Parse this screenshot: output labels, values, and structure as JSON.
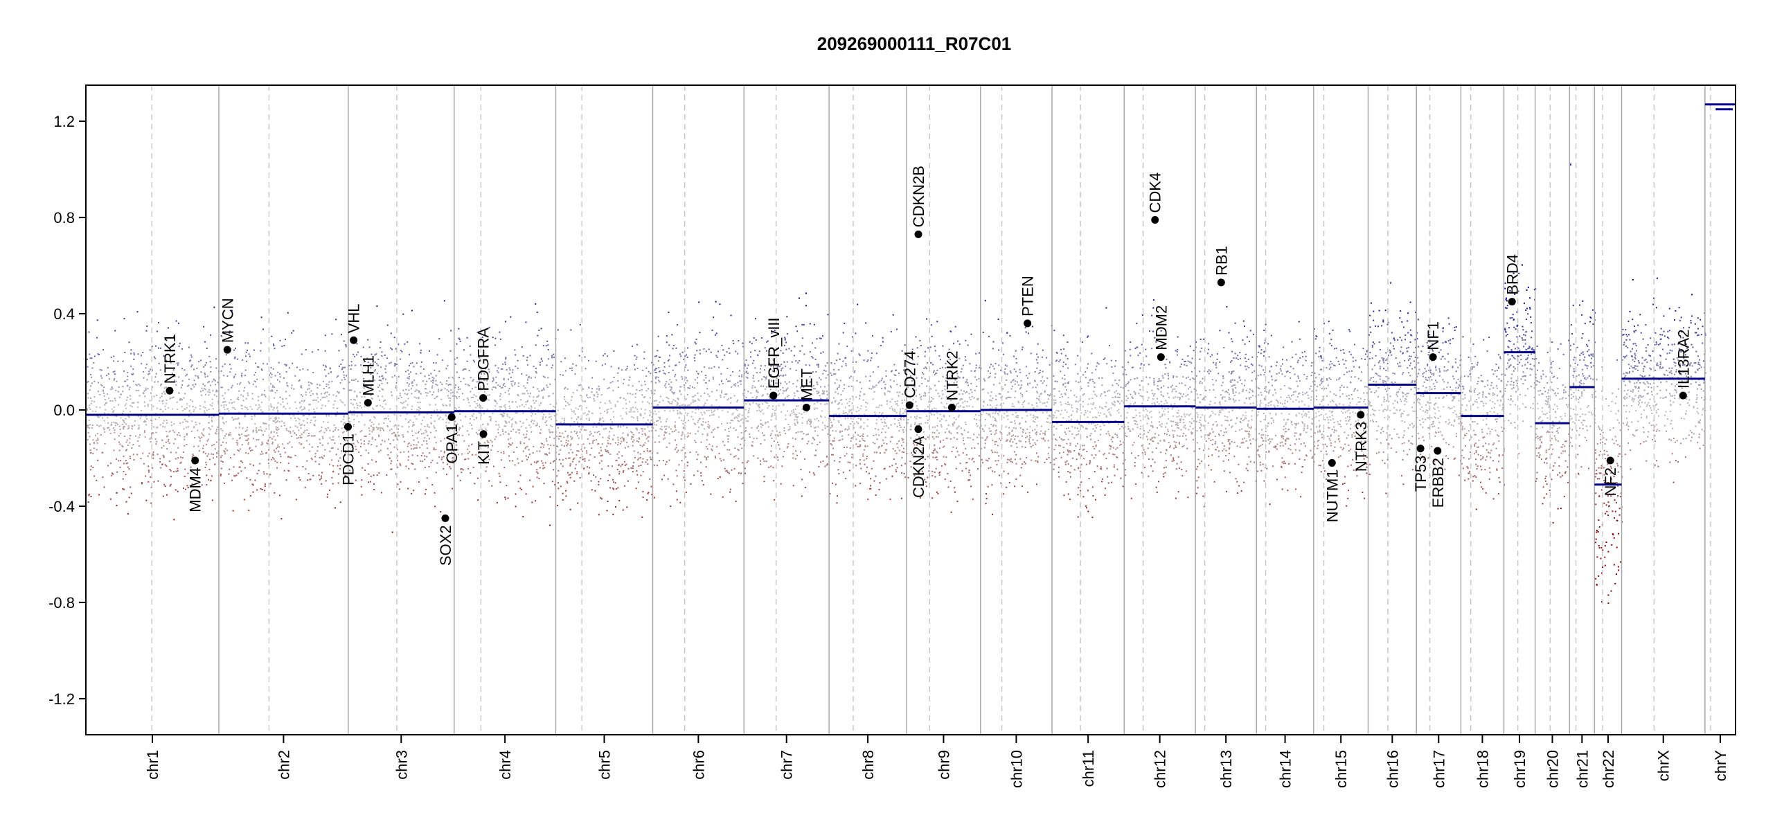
{
  "chart_data": {
    "type": "scatter",
    "title": "209269000111_R07C01",
    "xlabel": "",
    "ylabel": "",
    "ylim": [
      -1.35,
      1.35
    ],
    "y_ticks": [
      1.2,
      0.8,
      0.4,
      0.0,
      -0.4,
      -0.8,
      -1.2
    ],
    "y_tick_labels": [
      "1.2",
      "0.8",
      "0.4",
      "0.0",
      "-0.4",
      "-0.8",
      "-1.2"
    ],
    "grid": false,
    "x_axis_unit": "Mb (cumulative genome position)",
    "colors": {
      "gain": "#00008B",
      "loss": "#8B0000",
      "segment": "#00008B",
      "neutral": "#BEBEBE",
      "boundary": "#A9A9A9"
    },
    "chromosomes": [
      {
        "name": "chr1",
        "length": 248.9,
        "centromere": 123.4
      },
      {
        "name": "chr2",
        "length": 242.2,
        "centromere": 93.9
      },
      {
        "name": "chr3",
        "length": 198.3,
        "centromere": 90.9
      },
      {
        "name": "chr4",
        "length": 190.2,
        "centromere": 50.0
      },
      {
        "name": "chr5",
        "length": 181.5,
        "centromere": 48.8
      },
      {
        "name": "chr6",
        "length": 170.8,
        "centromere": 59.8
      },
      {
        "name": "chr7",
        "length": 159.3,
        "centromere": 60.1
      },
      {
        "name": "chr8",
        "length": 145.1,
        "centromere": 45.2
      },
      {
        "name": "chr9",
        "length": 138.4,
        "centromere": 43.0
      },
      {
        "name": "chr10",
        "length": 133.8,
        "centromere": 39.8
      },
      {
        "name": "chr11",
        "length": 135.1,
        "centromere": 53.4
      },
      {
        "name": "chr12",
        "length": 133.3,
        "centromere": 35.5
      },
      {
        "name": "chr13",
        "length": 114.4,
        "centromere": 17.7
      },
      {
        "name": "chr14",
        "length": 107.0,
        "centromere": 17.2
      },
      {
        "name": "chr15",
        "length": 102.0,
        "centromere": 19.0
      },
      {
        "name": "chr16",
        "length": 90.3,
        "centromere": 36.8
      },
      {
        "name": "chr17",
        "length": 83.3,
        "centromere": 25.1
      },
      {
        "name": "chr18",
        "length": 80.4,
        "centromere": 18.5
      },
      {
        "name": "chr19",
        "length": 58.6,
        "centromere": 26.2
      },
      {
        "name": "chr20",
        "length": 64.4,
        "centromere": 28.1
      },
      {
        "name": "chr21",
        "length": 46.7,
        "centromere": 12.0
      },
      {
        "name": "chr22",
        "length": 50.8,
        "centromere": 15.0
      },
      {
        "name": "chrX",
        "length": 156.0,
        "centromere": 60.6
      },
      {
        "name": "chrY",
        "length": 57.2,
        "centromere": 10.4
      }
    ],
    "segments": [
      {
        "chrom": "chr1",
        "start": 0,
        "end": 248.9,
        "value": -0.02
      },
      {
        "chrom": "chr2",
        "start": 0,
        "end": 242.2,
        "value": -0.015
      },
      {
        "chrom": "chr3",
        "start": 0,
        "end": 198.3,
        "value": -0.01
      },
      {
        "chrom": "chr4",
        "start": 0,
        "end": 190.2,
        "value": -0.005
      },
      {
        "chrom": "chr5",
        "start": 0,
        "end": 181.5,
        "value": -0.06
      },
      {
        "chrom": "chr6",
        "start": 0,
        "end": 170.8,
        "value": 0.01
      },
      {
        "chrom": "chr7",
        "start": 0,
        "end": 159.3,
        "value": 0.04
      },
      {
        "chrom": "chr8",
        "start": 0,
        "end": 145.1,
        "value": -0.025
      },
      {
        "chrom": "chr9",
        "start": 0,
        "end": 138.4,
        "value": -0.005
      },
      {
        "chrom": "chr10",
        "start": 0,
        "end": 133.8,
        "value": 0.0
      },
      {
        "chrom": "chr11",
        "start": 0,
        "end": 135.1,
        "value": -0.05
      },
      {
        "chrom": "chr12",
        "start": 0,
        "end": 133.3,
        "value": 0.015
      },
      {
        "chrom": "chr13",
        "start": 0,
        "end": 114.4,
        "value": 0.01
      },
      {
        "chrom": "chr14",
        "start": 0,
        "end": 107.0,
        "value": 0.005
      },
      {
        "chrom": "chr15",
        "start": 0,
        "end": 102.0,
        "value": 0.01
      },
      {
        "chrom": "chr16",
        "start": 0,
        "end": 90.3,
        "value": 0.105
      },
      {
        "chrom": "chr17",
        "start": 0,
        "end": 83.3,
        "value": 0.07
      },
      {
        "chrom": "chr18",
        "start": 0,
        "end": 80.4,
        "value": -0.025
      },
      {
        "chrom": "chr19",
        "start": 0,
        "end": 58.6,
        "value": 0.24
      },
      {
        "chrom": "chr20",
        "start": 0,
        "end": 64.4,
        "value": -0.055
      },
      {
        "chrom": "chr21",
        "start": 0,
        "end": 46.7,
        "value": 0.095
      },
      {
        "chrom": "chr22",
        "start": 0,
        "end": 50.8,
        "value": -0.31
      },
      {
        "chrom": "chrX",
        "start": 0,
        "end": 156.0,
        "value": 0.13
      },
      {
        "chrom": "chrY",
        "start": 0,
        "end": 57.2,
        "value": 1.27
      }
    ],
    "extra_segments": [
      {
        "chrom": "chr21",
        "start": 1,
        "end": 3,
        "value": 1.02
      },
      {
        "chrom": "chrY",
        "start": 20,
        "end": 52,
        "value": 1.25
      }
    ],
    "genes": [
      {
        "name": "NTRK1",
        "chrom": "chr1",
        "pos": 156.8,
        "value": 0.08,
        "label_side": "above"
      },
      {
        "name": "MDM4",
        "chrom": "chr1",
        "pos": 204.5,
        "value": -0.21,
        "label_side": "below"
      },
      {
        "name": "MYCN",
        "chrom": "chr2",
        "pos": 15.9,
        "value": 0.25,
        "label_side": "above"
      },
      {
        "name": "VHL",
        "chrom": "chr3",
        "pos": 10.1,
        "value": 0.29,
        "label_side": "above"
      },
      {
        "name": "PDCD1",
        "chrom": "chr2",
        "pos": 241.8,
        "value": -0.07,
        "label_side": "below"
      },
      {
        "name": "MLH1",
        "chrom": "chr3",
        "pos": 37.0,
        "value": 0.03,
        "label_side": "above"
      },
      {
        "name": "SOX2",
        "chrom": "chr3",
        "pos": 181.7,
        "value": -0.45,
        "label_side": "below"
      },
      {
        "name": "OPA1",
        "chrom": "chr3",
        "pos": 193.6,
        "value": -0.03,
        "label_side": "below"
      },
      {
        "name": "PDGFRA",
        "chrom": "chr4",
        "pos": 54.2,
        "value": 0.05,
        "label_side": "above"
      },
      {
        "name": "KIT",
        "chrom": "chr4",
        "pos": 54.7,
        "value": -0.1,
        "label_side": "below"
      },
      {
        "name": "EGFR",
        "chrom": "chr7",
        "pos": 55.1,
        "value": 0.06,
        "label_side": "above"
      },
      {
        "name": "EGFR_vIII",
        "chrom": "chr7",
        "pos": 55.2,
        "value": 0.06,
        "label_side": "above"
      },
      {
        "name": "MET",
        "chrom": "chr7",
        "pos": 116.8,
        "value": 0.01,
        "label_side": "above"
      },
      {
        "name": "CD274",
        "chrom": "chr9",
        "pos": 5.5,
        "value": 0.02,
        "label_side": "above"
      },
      {
        "name": "CDKN2B",
        "chrom": "chr9",
        "pos": 22.0,
        "value": 0.73,
        "label_side": "above"
      },
      {
        "name": "CDKN2A",
        "chrom": "chr9",
        "pos": 21.9,
        "value": -0.08,
        "label_side": "below"
      },
      {
        "name": "NTRK2",
        "chrom": "chr9",
        "pos": 84.7,
        "value": 0.01,
        "label_side": "above"
      },
      {
        "name": "PTEN",
        "chrom": "chr10",
        "pos": 87.9,
        "value": 0.36,
        "label_side": "above"
      },
      {
        "name": "CDK4",
        "chrom": "chr12",
        "pos": 57.7,
        "value": 0.79,
        "label_side": "above"
      },
      {
        "name": "MDM2",
        "chrom": "chr12",
        "pos": 68.8,
        "value": 0.22,
        "label_side": "above"
      },
      {
        "name": "RB1",
        "chrom": "chr13",
        "pos": 48.3,
        "value": 0.53,
        "label_side": "above"
      },
      {
        "name": "NUTM1",
        "chrom": "chr15",
        "pos": 34.3,
        "value": -0.22,
        "label_side": "below"
      },
      {
        "name": "NTRK3",
        "chrom": "chr15",
        "pos": 88.1,
        "value": -0.02,
        "label_side": "below"
      },
      {
        "name": "TP53",
        "chrom": "chr17",
        "pos": 7.7,
        "value": -0.16,
        "label_side": "below"
      },
      {
        "name": "NF1",
        "chrom": "chr17",
        "pos": 31.1,
        "value": 0.22,
        "label_side": "above"
      },
      {
        "name": "ERBB2",
        "chrom": "chr17",
        "pos": 39.7,
        "value": -0.17,
        "label_side": "below"
      },
      {
        "name": "BRD4",
        "chrom": "chr19",
        "pos": 15.3,
        "value": 0.45,
        "label_side": "above"
      },
      {
        "name": "NF2",
        "chrom": "chr22",
        "pos": 29.6,
        "value": -0.21,
        "label_side": "below"
      },
      {
        "name": "IL13RA2",
        "chrom": "chrX",
        "pos": 115.0,
        "value": 0.06,
        "label_side": "above"
      }
    ]
  }
}
